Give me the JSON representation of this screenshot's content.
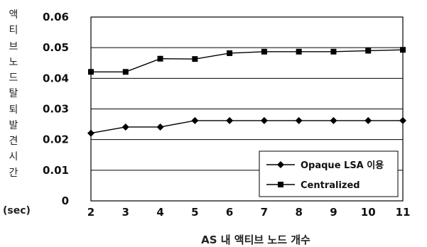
{
  "chart_data": {
    "type": "line",
    "title": "",
    "xlabel": "AS 내 액티브 노드 개수",
    "ylabel": "액티브 노드 탈퇴 발견 시간",
    "ylabel_unit": "(sec)",
    "x": [
      2,
      3,
      4,
      5,
      6,
      7,
      8,
      9,
      10,
      11
    ],
    "xlim": [
      2,
      11
    ],
    "ylim": [
      0,
      0.06
    ],
    "yticks": [
      "0",
      "0.01",
      "0.02",
      "0.03",
      "0.04",
      "0.05",
      "0.06"
    ],
    "grid": true,
    "legend_position": "bottom-right",
    "series": [
      {
        "name": "Opaque LSA 이용",
        "marker": "diamond",
        "values": [
          0.0221,
          0.0241,
          0.0241,
          0.0262,
          0.0262,
          0.0262,
          0.0262,
          0.0262,
          0.0262,
          0.0262
        ]
      },
      {
        "name": "Centralized",
        "marker": "square",
        "values": [
          0.0421,
          0.0421,
          0.0464,
          0.0463,
          0.0482,
          0.0487,
          0.0487,
          0.0487,
          0.049,
          0.0493
        ]
      }
    ]
  }
}
